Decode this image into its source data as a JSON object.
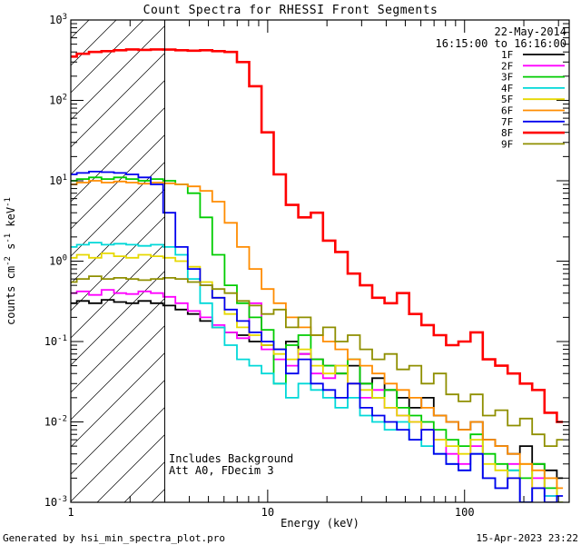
{
  "annotations": {
    "date": "22-May-2014",
    "time_range": "16:15:00 to 16:16:00",
    "note1": "Includes Background",
    "note2": "Att A0, FDecim 3"
  },
  "footer": {
    "left": "Generated by hsi_min_spectra_plot.pro",
    "right": "15-Apr-2023 23:22"
  },
  "chart_data": {
    "type": "line",
    "mode": "histogram-step",
    "title": "Count Spectra for RHESSI Front Segments",
    "xlabel": "Energy (keV)",
    "ylabel": "counts cm^-2 s^-1 keV^-1",
    "ylabel_parts": [
      [
        "counts cm",
        "n"
      ],
      [
        "-2",
        "s"
      ],
      [
        " s",
        "n"
      ],
      [
        "-1",
        "s"
      ],
      [
        " keV",
        "n"
      ],
      [
        "-1",
        "s"
      ]
    ],
    "xscale": "log",
    "yscale": "log",
    "xlim": [
      1,
      340
    ],
    "ylim": [
      0.001,
      1000
    ],
    "x_major_ticks": [
      1,
      10,
      100
    ],
    "y_tick_exponents": [
      -3,
      -2,
      -1,
      0,
      1,
      2,
      3
    ],
    "grid": false,
    "legend_position": "top-right",
    "background": "#ffffff",
    "axis_color": "#000000",
    "attenuator_keV": 3,
    "hatch_region": {
      "xmin": 1,
      "xmax": 3
    },
    "energies": [
      1.0,
      1.15,
      1.33,
      1.54,
      1.78,
      2.05,
      2.37,
      2.74,
      3.16,
      3.65,
      4.22,
      4.87,
      5.62,
      6.49,
      7.5,
      8.66,
      10.0,
      11.5,
      13.3,
      15.4,
      17.8,
      20.5,
      23.7,
      27.4,
      31.6,
      36.5,
      42.2,
      48.7,
      56.2,
      64.9,
      75.0,
      86.6,
      100,
      115,
      133,
      154,
      178,
      205,
      237,
      274,
      316
    ],
    "series": [
      {
        "name": "1F",
        "color": "#000000",
        "width": 1.8,
        "z": 1,
        "values": [
          0.3,
          0.32,
          0.3,
          0.33,
          0.31,
          0.3,
          0.32,
          0.3,
          0.28,
          0.25,
          0.22,
          0.18,
          0.15,
          0.13,
          0.12,
          0.1,
          0.09,
          0.08,
          0.1,
          0.07,
          0.06,
          0.05,
          0.04,
          0.05,
          0.03,
          0.035,
          0.025,
          0.02,
          0.015,
          0.02,
          0.012,
          0.01,
          0.008,
          0.01,
          0.006,
          0.005,
          0.004,
          0.005,
          0.003,
          0.0025,
          0.002
        ]
      },
      {
        "name": "2F",
        "color": "#ff00ff",
        "width": 1.8,
        "z": 1,
        "values": [
          0.4,
          0.42,
          0.38,
          0.44,
          0.4,
          0.39,
          0.42,
          0.4,
          0.36,
          0.3,
          0.24,
          0.2,
          0.16,
          0.13,
          0.11,
          0.3,
          0.08,
          0.06,
          0.05,
          0.07,
          0.04,
          0.035,
          0.05,
          0.03,
          0.02,
          0.025,
          0.015,
          0.012,
          0.01,
          0.008,
          0.006,
          0.004,
          0.003,
          0.005,
          0.002,
          0.0015,
          0.003,
          0.001,
          0.002,
          0.0012,
          0.001
        ]
      },
      {
        "name": "3F",
        "color": "#00cc00",
        "width": 1.8,
        "z": 1,
        "values": [
          10.0,
          10.5,
          11.0,
          10.5,
          11.0,
          10.5,
          10.0,
          10.5,
          10.0,
          9.0,
          7.0,
          3.5,
          1.2,
          0.5,
          0.3,
          0.2,
          0.14,
          0.03,
          0.09,
          0.12,
          0.06,
          0.05,
          0.04,
          0.06,
          0.03,
          0.02,
          0.025,
          0.015,
          0.012,
          0.01,
          0.008,
          0.006,
          0.005,
          0.007,
          0.004,
          0.003,
          0.0025,
          0.002,
          0.003,
          0.0015,
          0.001
        ]
      },
      {
        "name": "4F",
        "color": "#00d8d8",
        "width": 1.8,
        "z": 1,
        "values": [
          1.5,
          1.6,
          1.7,
          1.6,
          1.65,
          1.6,
          1.55,
          1.6,
          1.5,
          1.2,
          0.6,
          0.3,
          0.15,
          0.09,
          0.06,
          0.05,
          0.04,
          0.03,
          0.02,
          0.03,
          0.025,
          0.02,
          0.015,
          0.02,
          0.012,
          0.01,
          0.008,
          0.01,
          0.006,
          0.005,
          0.004,
          0.003,
          0.0025,
          0.004,
          0.002,
          0.0015,
          0.0025,
          0.001,
          0.0015,
          0.0012,
          0.001
        ]
      },
      {
        "name": "5F",
        "color": "#e6d800",
        "width": 1.8,
        "z": 1,
        "values": [
          1.1,
          1.2,
          1.1,
          1.25,
          1.15,
          1.1,
          1.2,
          1.15,
          1.1,
          1.0,
          0.85,
          0.55,
          0.35,
          0.22,
          0.15,
          0.12,
          0.09,
          0.07,
          0.06,
          0.08,
          0.05,
          0.04,
          0.05,
          0.03,
          0.025,
          0.02,
          0.015,
          0.012,
          0.01,
          0.008,
          0.006,
          0.005,
          0.004,
          0.006,
          0.003,
          0.0025,
          0.002,
          0.003,
          0.0015,
          0.002,
          0.001
        ]
      },
      {
        "name": "6F",
        "color": "#ff8c00",
        "width": 1.8,
        "z": 1,
        "values": [
          9.0,
          9.5,
          10.0,
          9.5,
          9.8,
          9.5,
          9.2,
          9.5,
          9.3,
          9.0,
          8.5,
          7.5,
          5.5,
          3.0,
          1.5,
          0.8,
          0.45,
          0.3,
          0.2,
          0.15,
          0.12,
          0.1,
          0.08,
          0.06,
          0.05,
          0.04,
          0.03,
          0.025,
          0.02,
          0.015,
          0.012,
          0.01,
          0.008,
          0.01,
          0.006,
          0.005,
          0.004,
          0.003,
          0.0025,
          0.002,
          0.0015
        ]
      },
      {
        "name": "7F",
        "color": "#0000ee",
        "width": 1.8,
        "z": 1,
        "values": [
          12.0,
          12.5,
          13.0,
          12.8,
          12.5,
          12.0,
          11.0,
          9.0,
          4.0,
          1.5,
          0.8,
          0.5,
          0.35,
          0.25,
          0.18,
          0.13,
          0.1,
          0.08,
          0.04,
          0.06,
          0.03,
          0.025,
          0.02,
          0.03,
          0.015,
          0.012,
          0.01,
          0.008,
          0.006,
          0.008,
          0.004,
          0.003,
          0.0025,
          0.004,
          0.002,
          0.0015,
          0.002,
          0.001,
          0.0015,
          0.001,
          0.0012
        ]
      },
      {
        "name": "8F",
        "color": "#ff0000",
        "width": 2.6,
        "z": 3,
        "values": [
          350,
          380,
          400,
          410,
          420,
          430,
          425,
          430,
          428,
          420,
          415,
          420,
          410,
          400,
          300,
          150,
          40,
          12,
          5,
          3.5,
          4,
          1.8,
          1.3,
          0.7,
          0.5,
          0.35,
          0.3,
          0.4,
          0.22,
          0.16,
          0.12,
          0.09,
          0.1,
          0.13,
          0.06,
          0.05,
          0.04,
          0.03,
          0.025,
          0.013,
          0.01
        ]
      },
      {
        "name": "9F",
        "color": "#8f8f00",
        "width": 1.8,
        "z": 2,
        "values": [
          0.55,
          0.6,
          0.65,
          0.6,
          0.62,
          0.6,
          0.58,
          0.6,
          0.62,
          0.6,
          0.55,
          0.5,
          0.45,
          0.4,
          0.32,
          0.28,
          0.22,
          0.25,
          0.15,
          0.2,
          0.12,
          0.15,
          0.1,
          0.12,
          0.08,
          0.06,
          0.07,
          0.045,
          0.05,
          0.03,
          0.04,
          0.022,
          0.018,
          0.022,
          0.012,
          0.014,
          0.009,
          0.011,
          0.007,
          0.005,
          0.006
        ]
      }
    ]
  }
}
